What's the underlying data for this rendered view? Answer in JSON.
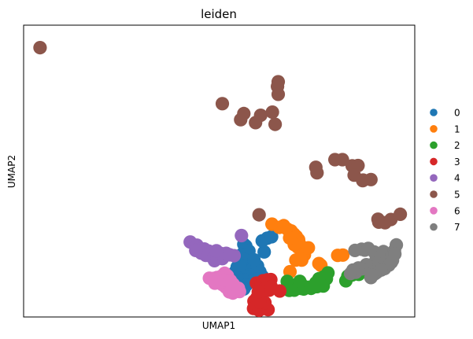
{
  "chart_data": {
    "type": "scatter",
    "title": "leiden",
    "xlabel": "UMAP1",
    "ylabel": "UMAP2",
    "xticks": false,
    "yticks": false,
    "xlim": [
      0,
      100
    ],
    "ylim": [
      0,
      100
    ],
    "grid": false,
    "legend_position": "right",
    "series": [
      {
        "name": "0",
        "color": "#1f77b4",
        "points": [
          [
            56.3,
            24.9
          ],
          [
            56.8,
            24.3
          ],
          [
            57.6,
            22.6
          ],
          [
            55.8,
            21.4
          ],
          [
            56.4,
            19.6
          ],
          [
            56.7,
            17.3
          ],
          [
            57.3,
            15.5
          ],
          [
            58.4,
            16.3
          ],
          [
            57.8,
            14.3
          ],
          [
            56.5,
            14.0
          ],
          [
            55.1,
            15.2
          ],
          [
            54.6,
            17.1
          ],
          [
            54.0,
            15.3
          ],
          [
            53.9,
            13.7
          ],
          [
            54.6,
            12.1
          ],
          [
            55.7,
            12.7
          ],
          [
            56.8,
            12.6
          ],
          [
            57.9,
            12.0
          ],
          [
            56.9,
            10.9
          ],
          [
            56.3,
            9.6
          ],
          [
            55.1,
            10.0
          ],
          [
            54.2,
            12.1
          ],
          [
            53.5,
            11.1
          ],
          [
            53.2,
            14.0
          ],
          [
            55.3,
            17.8
          ],
          [
            58.9,
            19.6
          ],
          [
            59.8,
            17.5
          ],
          [
            60.4,
            15.5
          ],
          [
            61.0,
            14.0
          ],
          [
            59.8,
            13.0
          ],
          [
            60.6,
            11.9
          ],
          [
            61.3,
            10.5
          ],
          [
            61.5,
            22.3
          ],
          [
            61.0,
            26.1
          ],
          [
            62.3,
            27.0
          ],
          [
            63.4,
            27.5
          ]
        ]
      },
      {
        "name": "1",
        "color": "#ff7f0e",
        "points": [
          [
            63.5,
            31.8
          ],
          [
            65.4,
            30.7
          ],
          [
            66.5,
            31.3
          ],
          [
            67.4,
            30.1
          ],
          [
            68.4,
            29.5
          ],
          [
            69.1,
            28.4
          ],
          [
            69.7,
            27.6
          ],
          [
            70.3,
            26.5
          ],
          [
            70.5,
            25.2
          ],
          [
            70.1,
            23.9
          ],
          [
            71.1,
            22.6
          ],
          [
            71.8,
            21.3
          ],
          [
            71.1,
            19.5
          ],
          [
            69.6,
            19.5
          ],
          [
            68.1,
            15.5
          ],
          [
            70.9,
            20.1
          ],
          [
            69.2,
            24.8
          ],
          [
            68.0,
            27.1
          ],
          [
            72.8,
            23.7
          ],
          [
            75.5,
            18.3
          ],
          [
            76.0,
            17.7
          ],
          [
            80.3,
            21.1
          ],
          [
            81.6,
            21.2
          ]
        ]
      },
      {
        "name": "2",
        "color": "#2ca02c",
        "points": [
          [
            67.4,
            12.2
          ],
          [
            68.2,
            10.2
          ],
          [
            69.7,
            10.9
          ],
          [
            70.9,
            11.4
          ],
          [
            70.8,
            9.8
          ],
          [
            69.2,
            9.2
          ],
          [
            67.9,
            9.1
          ],
          [
            71.6,
            9.6
          ],
          [
            73.5,
            9.8
          ],
          [
            75.0,
            10.4
          ],
          [
            76.3,
            11.7
          ],
          [
            77.4,
            13.1
          ],
          [
            77.8,
            15.1
          ],
          [
            76.8,
            13.8
          ],
          [
            75.5,
            13.1
          ],
          [
            74.7,
            11.7
          ],
          [
            72.8,
            10.2
          ],
          [
            70.6,
            12.2
          ],
          [
            76.6,
            10.6
          ],
          [
            82.9,
            14.0
          ],
          [
            84.0,
            14.4
          ],
          [
            85.7,
            14.6
          ],
          [
            82.4,
            12.4
          ]
        ]
      },
      {
        "name": "3",
        "color": "#d62728",
        "points": [
          [
            59.5,
            11.6
          ],
          [
            60.8,
            11.2
          ],
          [
            61.2,
            12.4
          ],
          [
            62.3,
            12.7
          ],
          [
            63.2,
            12.8
          ],
          [
            62.6,
            11.4
          ],
          [
            61.5,
            9.6
          ],
          [
            60.6,
            7.8
          ],
          [
            59.6,
            6.5
          ],
          [
            59.6,
            4.3
          ],
          [
            58.9,
            5.4
          ],
          [
            58.8,
            2.9
          ],
          [
            60.2,
            2.3
          ],
          [
            61.5,
            3.2
          ],
          [
            62.5,
            2.5
          ],
          [
            61.7,
            4.9
          ],
          [
            60.4,
            5.2
          ],
          [
            62.8,
            9.2
          ],
          [
            65.5,
            8.9
          ],
          [
            63.3,
            10.4
          ],
          [
            60.0,
            8.6
          ]
        ]
      },
      {
        "name": "4",
        "color": "#9467bd",
        "points": [
          [
            42.6,
            25.7
          ],
          [
            44.3,
            24.6
          ],
          [
            44.8,
            23.1
          ],
          [
            46.2,
            23.3
          ],
          [
            47.3,
            22.6
          ],
          [
            46.6,
            21.1
          ],
          [
            48.0,
            20.7
          ],
          [
            48.8,
            19.3
          ],
          [
            49.5,
            20.1
          ],
          [
            50.8,
            20.0
          ],
          [
            51.8,
            21.8
          ],
          [
            50.3,
            21.8
          ],
          [
            49.3,
            22.7
          ],
          [
            52.7,
            21.3
          ],
          [
            55.7,
            27.9
          ],
          [
            53.8,
            21.0
          ],
          [
            45.4,
            21.9
          ],
          [
            44.0,
            22.8
          ]
        ]
      },
      {
        "name": "5",
        "color": "#8c564b",
        "points": [
          [
            4.2,
            92.3
          ],
          [
            50.8,
            73.1
          ],
          [
            56.3,
            69.7
          ],
          [
            55.5,
            67.6
          ],
          [
            60.6,
            69.1
          ],
          [
            63.6,
            70.2
          ],
          [
            65.1,
            76.3
          ],
          [
            64.9,
            79.0
          ],
          [
            65.1,
            80.6
          ],
          [
            59.3,
            66.6
          ],
          [
            64.3,
            66.0
          ],
          [
            74.7,
            51.3
          ],
          [
            75.0,
            49.4
          ],
          [
            79.6,
            53.9
          ],
          [
            81.5,
            53.9
          ],
          [
            84.0,
            51.8
          ],
          [
            85.5,
            51.9
          ],
          [
            84.5,
            48.6
          ],
          [
            86.7,
            46.7
          ],
          [
            86.8,
            46.9
          ],
          [
            88.8,
            47.1
          ],
          [
            60.2,
            35.0
          ],
          [
            92.4,
            32.3
          ],
          [
            93.9,
            33.4
          ],
          [
            96.3,
            35.2
          ],
          [
            90.8,
            32.5
          ],
          [
            90.6,
            33.5
          ]
        ]
      },
      {
        "name": "6",
        "color": "#e377c2",
        "points": [
          [
            47.5,
            13.3
          ],
          [
            48.6,
            13.2
          ],
          [
            49.6,
            12.4
          ],
          [
            50.5,
            13.3
          ],
          [
            51.6,
            12.9
          ],
          [
            52.1,
            14.1
          ],
          [
            51.4,
            15.0
          ],
          [
            50.6,
            14.0
          ],
          [
            49.4,
            13.5
          ],
          [
            48.9,
            11.6
          ],
          [
            50.8,
            11.1
          ],
          [
            52.1,
            10.7
          ],
          [
            53.0,
            9.7
          ],
          [
            54.2,
            9.0
          ],
          [
            55.2,
            8.7
          ],
          [
            53.5,
            8.2
          ],
          [
            52.6,
            8.6
          ],
          [
            51.7,
            10.2
          ],
          [
            50.8,
            12.1
          ],
          [
            51.3,
            12.6
          ],
          [
            52.9,
            12.4
          ],
          [
            53.6,
            11.2
          ],
          [
            54.9,
            9.8
          ]
        ]
      },
      {
        "name": "7",
        "color": "#7f7f7f",
        "points": [
          [
            84.7,
            22.8
          ],
          [
            86.4,
            23.2
          ],
          [
            87.2,
            22.9
          ],
          [
            88.1,
            23.5
          ],
          [
            89.6,
            22.3
          ],
          [
            90.2,
            20.5
          ],
          [
            91.3,
            19.9
          ],
          [
            91.7,
            18.7
          ],
          [
            92.3,
            19.0
          ],
          [
            91.7,
            17.4
          ],
          [
            90.3,
            15.3
          ],
          [
            89.7,
            16.8
          ],
          [
            89.3,
            18.1
          ],
          [
            88.3,
            17.2
          ],
          [
            87.6,
            17.9
          ],
          [
            86.5,
            16.5
          ],
          [
            85.6,
            16.8
          ],
          [
            84.9,
            15.3
          ],
          [
            84.2,
            16.1
          ],
          [
            83.6,
            14.9
          ],
          [
            91.4,
            20.7
          ],
          [
            92.0,
            22.4
          ],
          [
            94.1,
            21.5
          ],
          [
            94.8,
            22.8
          ],
          [
            95.3,
            24.7
          ],
          [
            94.9,
            21.6
          ],
          [
            94.3,
            19.4
          ],
          [
            94.0,
            18.7
          ],
          [
            93.4,
            17.8
          ],
          [
            92.3,
            16.6
          ],
          [
            91.4,
            16.1
          ],
          [
            89.8,
            14.8
          ],
          [
            89.0,
            14.3
          ],
          [
            88.8,
            13.5
          ]
        ]
      }
    ]
  }
}
